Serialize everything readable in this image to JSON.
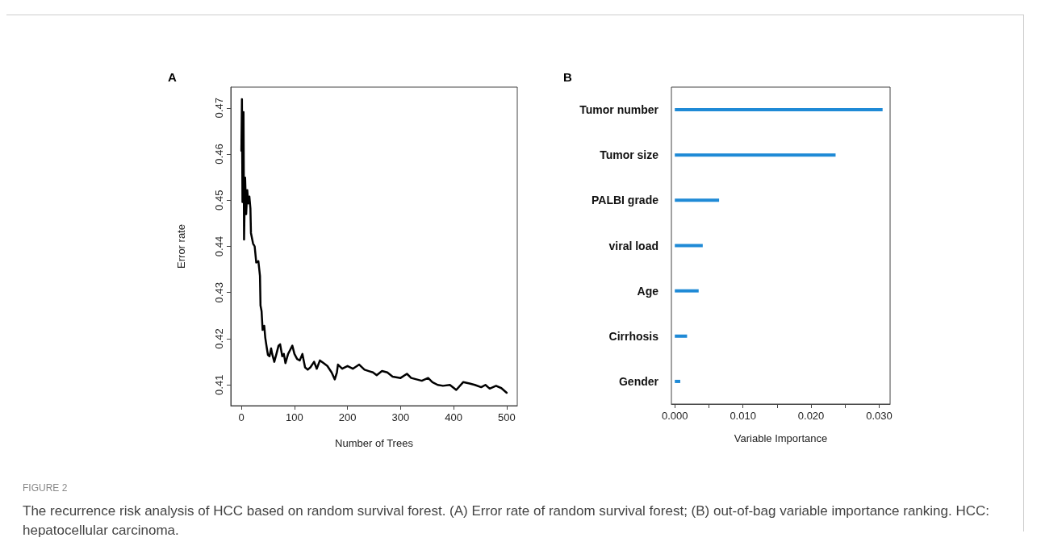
{
  "chart_data": [
    {
      "type": "line",
      "title": "A",
      "xlabel": "Number of Trees",
      "ylabel": "Error rate",
      "color": "#000000",
      "line_style": "solid",
      "marker": "none",
      "grid": false,
      "x": [
        0,
        1,
        2,
        4,
        5,
        7,
        9,
        11,
        13,
        15,
        17,
        18,
        22,
        25,
        28,
        32,
        35,
        36,
        38,
        40,
        43,
        45,
        48,
        50,
        53,
        56,
        58,
        62,
        66,
        70,
        73,
        77,
        80,
        83,
        88,
        92,
        96,
        100,
        105,
        110,
        115,
        120,
        125,
        130,
        137,
        142,
        148,
        155,
        162,
        170,
        176,
        180,
        182,
        190,
        200,
        210,
        222,
        232,
        240,
        248,
        255,
        265,
        275,
        285,
        300,
        312,
        320,
        330,
        340,
        352,
        360,
        370,
        380,
        393,
        405,
        418,
        430,
        440,
        452,
        460,
        468,
        480,
        490,
        500
      ],
      "values": [
        0.4607,
        0.4719,
        0.4496,
        0.4691,
        0.4415,
        0.4549,
        0.447,
        0.4522,
        0.4493,
        0.4508,
        0.4482,
        0.4429,
        0.4406,
        0.44,
        0.4365,
        0.4368,
        0.4336,
        0.4272,
        0.426,
        0.4219,
        0.4228,
        0.4202,
        0.4179,
        0.4165,
        0.4162,
        0.4179,
        0.4167,
        0.415,
        0.4167,
        0.4185,
        0.4188,
        0.4162,
        0.4167,
        0.4147,
        0.4167,
        0.4176,
        0.4185,
        0.4167,
        0.4156,
        0.4153,
        0.4167,
        0.4138,
        0.4133,
        0.4138,
        0.415,
        0.4135,
        0.4153,
        0.4147,
        0.4141,
        0.4127,
        0.4112,
        0.4127,
        0.4144,
        0.4135,
        0.4141,
        0.4135,
        0.4144,
        0.4133,
        0.413,
        0.4127,
        0.4121,
        0.413,
        0.4127,
        0.4118,
        0.4115,
        0.4124,
        0.4115,
        0.4112,
        0.4109,
        0.4115,
        0.4106,
        0.41,
        0.4098,
        0.41,
        0.4089,
        0.4106,
        0.4103,
        0.41,
        0.4095,
        0.41,
        0.4092,
        0.4098,
        0.4093,
        0.4083
      ],
      "xlim": [
        -20,
        520
      ],
      "ylim": [
        0.4055,
        0.4745
      ],
      "xticks": [
        0,
        100,
        200,
        300,
        400,
        500
      ],
      "yticks": [
        0.41,
        0.42,
        0.43,
        0.44,
        0.45,
        0.46,
        0.47
      ],
      "annotations": [
        "FIGURE 2",
        "The recurrence risk analysis of HCC based on random survival forest. (A) Error rate of random survival forest; (B) out-of-bag variable importance ranking. HCC: hepatocellular carcinoma."
      ]
    },
    {
      "type": "bar",
      "orientation": "horizontal",
      "title": "B",
      "xlabel": "Variable Importance",
      "color": "#1f8ad6",
      "grid": false,
      "categories": [
        "Tumor number",
        "Tumor size",
        "PALBI grade",
        "viral load",
        "Age",
        "Cirrhosis",
        "Gender"
      ],
      "values": [
        0.0305,
        0.0236,
        0.0065,
        0.0041,
        0.0035,
        0.0018,
        0.0008
      ],
      "xlim": [
        -0.0005,
        0.0316
      ],
      "xticks": [
        {
          "value": 0,
          "label": "0.000"
        },
        {
          "value": 0.005,
          "label": null
        },
        {
          "value": 0.01,
          "label": "0.010"
        },
        {
          "value": 0.015,
          "label": null
        },
        {
          "value": 0.02,
          "label": "0.020"
        },
        {
          "value": 0.025,
          "label": null
        },
        {
          "value": 0.03,
          "label": "0.030"
        }
      ]
    }
  ]
}
